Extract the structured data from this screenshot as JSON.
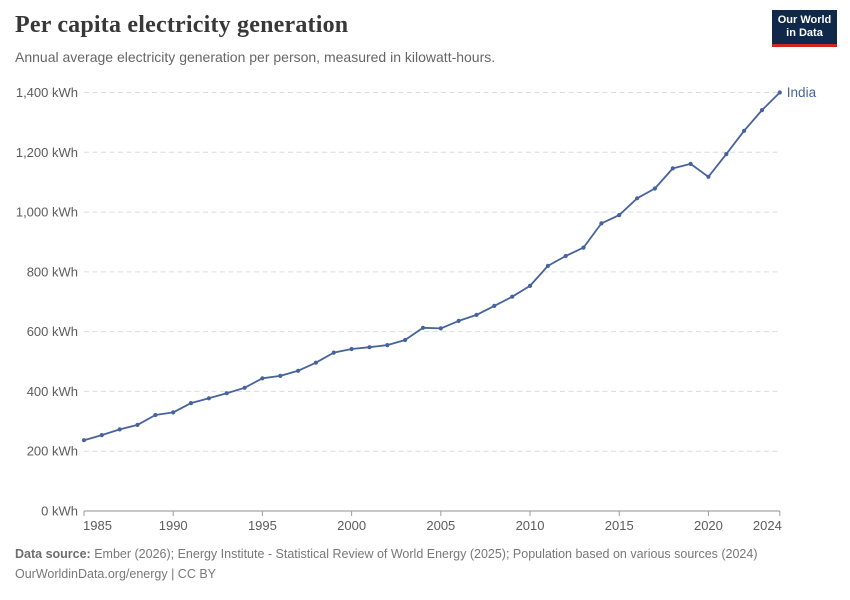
{
  "header": {
    "title": "Per capita electricity generation",
    "subtitle": "Annual average electricity generation per person, measured in kilowatt-hours.",
    "logo": {
      "line1": "Our World",
      "line2": "in Data",
      "bg_color": "#10294B",
      "accent_color": "#CE261E"
    }
  },
  "chart_data": {
    "type": "line",
    "title": "Per capita electricity generation",
    "unit": "kWh",
    "grid": "horizontal-dashed",
    "legend_position": "end-of-line-label",
    "xlim": [
      1985,
      2024
    ],
    "ylim": [
      0,
      1400
    ],
    "x_ticks": [
      1985,
      1990,
      1995,
      2000,
      2005,
      2010,
      2015,
      2020,
      2024
    ],
    "x_tick_labels": [
      "1985",
      "1990",
      "1995",
      "2000",
      "2005",
      "2010",
      "2015",
      "2020",
      "2024"
    ],
    "y_ticks": [
      0,
      200,
      400,
      600,
      800,
      1000,
      1200,
      1400
    ],
    "y_tick_labels": [
      "0 kWh",
      "200 kWh",
      "400 kWh",
      "600 kWh",
      "800 kWh",
      "1,000 kWh",
      "1,200 kWh",
      "1,400 kWh"
    ],
    "series": [
      {
        "name": "India",
        "color": "#46639C",
        "x": [
          1985,
          1986,
          1987,
          1988,
          1989,
          1990,
          1991,
          1992,
          1993,
          1994,
          1995,
          1996,
          1997,
          1998,
          1999,
          2000,
          2001,
          2002,
          2003,
          2004,
          2005,
          2006,
          2007,
          2008,
          2009,
          2010,
          2011,
          2012,
          2013,
          2014,
          2015,
          2016,
          2017,
          2018,
          2019,
          2020,
          2021,
          2022,
          2023,
          2024
        ],
        "values": [
          237,
          254,
          273,
          288,
          321,
          330,
          361,
          377,
          394,
          412,
          444,
          452,
          469,
          496,
          530,
          542,
          548,
          555,
          572,
          613,
          611,
          636,
          656,
          686,
          717,
          753,
          820,
          853,
          881,
          962,
          990,
          1046,
          1079,
          1146,
          1161,
          1118,
          1194,
          1272,
          1341,
          1400
        ]
      }
    ]
  },
  "footer": {
    "source_label": "Data source:",
    "source_text": " Ember (2026); Energy Institute - Statistical Review of World Energy (2025); Population based on various sources (2024)",
    "license_text": "OurWorldinData.org/energy | CC BY"
  }
}
